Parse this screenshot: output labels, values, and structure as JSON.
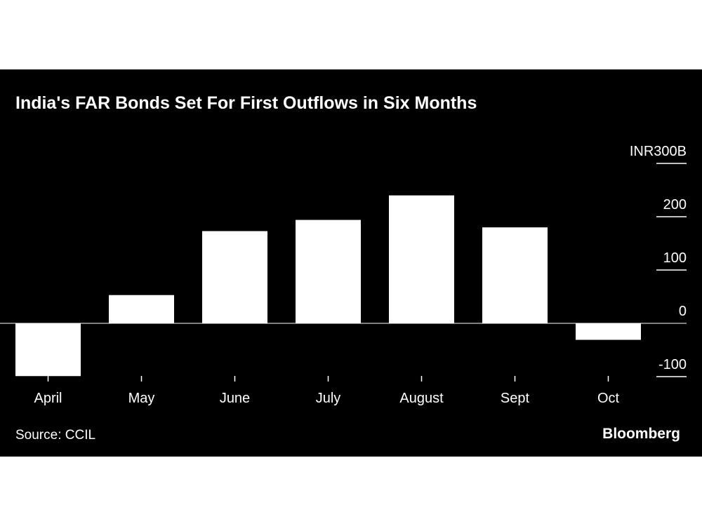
{
  "chart_data": {
    "type": "bar",
    "title": "India's FAR Bonds Set For First Outflows in Six Months",
    "categories": [
      "April",
      "May",
      "June",
      "July",
      "August",
      "Sept",
      "Oct"
    ],
    "values": [
      -99,
      53,
      173,
      194,
      240,
      180,
      -31
    ],
    "y_ticks": [
      {
        "value": 300,
        "label": "INR300B"
      },
      {
        "value": 200,
        "label": "200"
      },
      {
        "value": 100,
        "label": "100"
      },
      {
        "value": 0,
        "label": "0"
      },
      {
        "value": -100,
        "label": "-100"
      }
    ],
    "ylim": [
      -100,
      300
    ],
    "grid": false,
    "y_axis_position": "right",
    "colors": {
      "background": "#000000",
      "bars": "#ffffff",
      "text": "#ffffff"
    }
  },
  "footer": {
    "source": "Source: CCIL",
    "brand": "Bloomberg"
  }
}
